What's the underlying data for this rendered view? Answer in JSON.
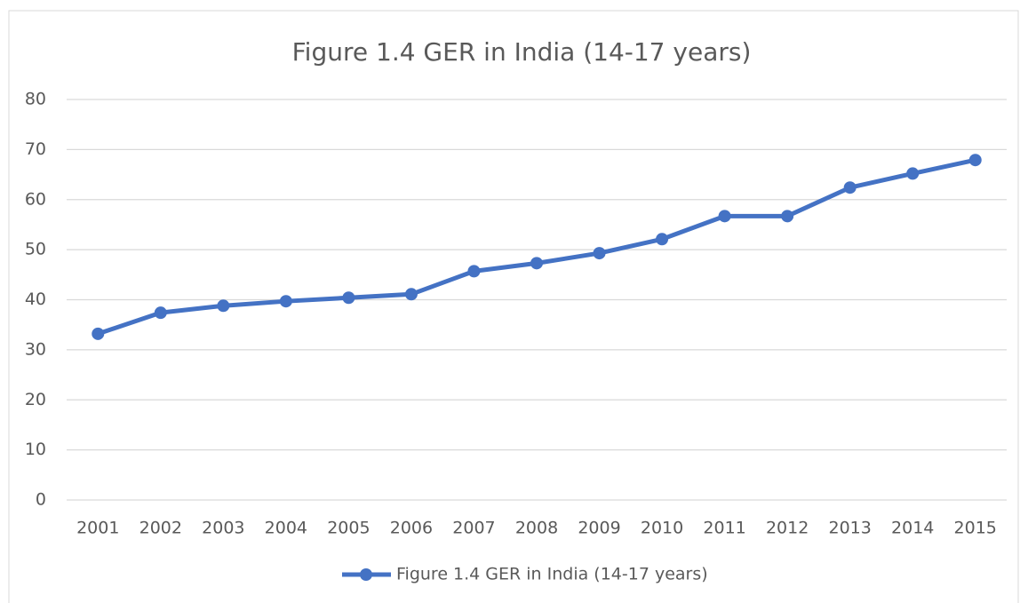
{
  "chart_data": {
    "type": "line",
    "title": "Figure 1.4 GER in India (14-17 years)",
    "categories": [
      "2001",
      "2002",
      "2003",
      "2004",
      "2005",
      "2006",
      "2007",
      "2008",
      "2009",
      "2010",
      "2011",
      "2012",
      "2013",
      "2014",
      "2015"
    ],
    "series": [
      {
        "name": "Figure 1.4 GER in India (14-17 years)",
        "color": "#4472c4",
        "values": [
          33.2,
          37.4,
          38.8,
          39.7,
          40.4,
          41.1,
          45.7,
          47.3,
          49.3,
          52.1,
          56.7,
          56.7,
          62.4,
          65.2,
          67.9
        ]
      }
    ],
    "ylim": [
      0,
      80
    ],
    "yticks": [
      0,
      10,
      20,
      30,
      40,
      50,
      60,
      70,
      80
    ],
    "grid": true,
    "legend": "bottom"
  }
}
